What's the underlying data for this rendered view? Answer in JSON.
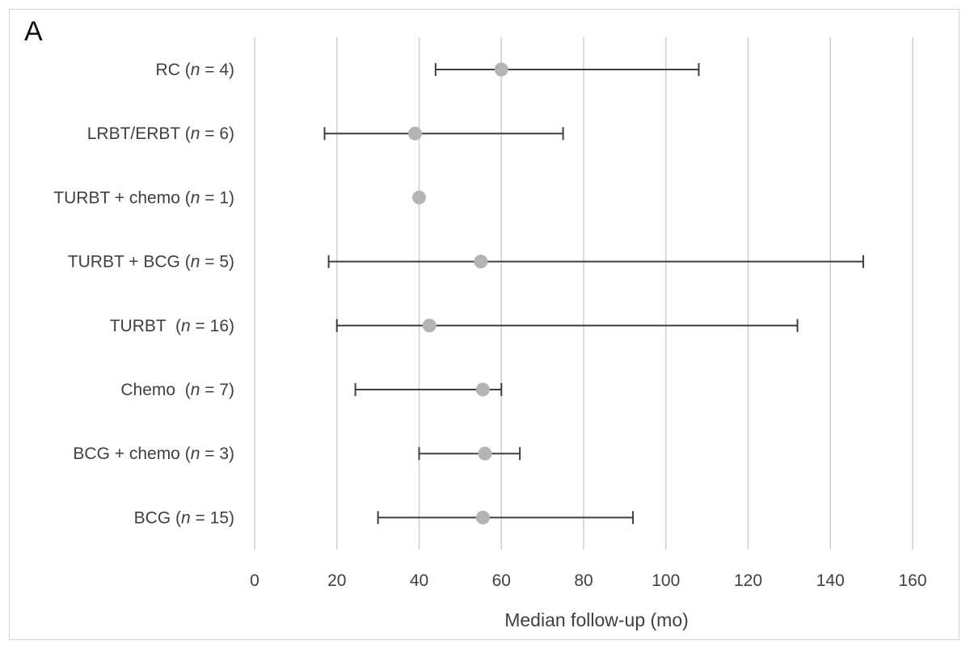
{
  "panel_label": "A",
  "chart_data": {
    "type": "scatter",
    "title": "",
    "xlabel": "Median follow-up (mo)",
    "ylabel": "",
    "xlim": [
      0,
      160
    ],
    "x_ticks": [
      0,
      20,
      40,
      60,
      80,
      100,
      120,
      140,
      160
    ],
    "grid": "vertical",
    "error_bars": "horizontal range",
    "colors": {
      "marker": "#b4b4b4",
      "error_bar": "#3f3f3f",
      "grid": "#d0d0d0",
      "text": "#404040"
    },
    "categories": [
      {
        "name": "RC",
        "n_label": "n",
        "n_suffix": " = 4)",
        "median": 60,
        "min": 44,
        "max": 108
      },
      {
        "name": "LRBT/ERBT",
        "n_label": "n",
        "n_suffix": " = 6)",
        "median": 39,
        "min": 17,
        "max": 75
      },
      {
        "name": "TURBT + chemo",
        "n_label": "n",
        "n_suffix": " = 1)",
        "median": 40,
        "min": null,
        "max": null
      },
      {
        "name": "TURBT + BCG",
        "n_label": "n",
        "n_suffix": " = 5)",
        "median": 55,
        "min": 18,
        "max": 148
      },
      {
        "name": "TURBT ",
        "n_label": "n",
        "n_suffix": " = 16)",
        "median": 42.5,
        "min": 20,
        "max": 132
      },
      {
        "name": "Chemo ",
        "n_label": "n",
        "n_suffix": " = 7)",
        "median": 55.5,
        "min": 24.5,
        "max": 60
      },
      {
        "name": "BCG + chemo",
        "n_label": "n",
        "n_suffix": " = 3)",
        "median": 56,
        "min": 40,
        "max": 64.5
      },
      {
        "name": "BCG",
        "n_label": "n",
        "n_suffix": " = 15)",
        "median": 55.5,
        "min": 30,
        "max": 92
      }
    ]
  }
}
